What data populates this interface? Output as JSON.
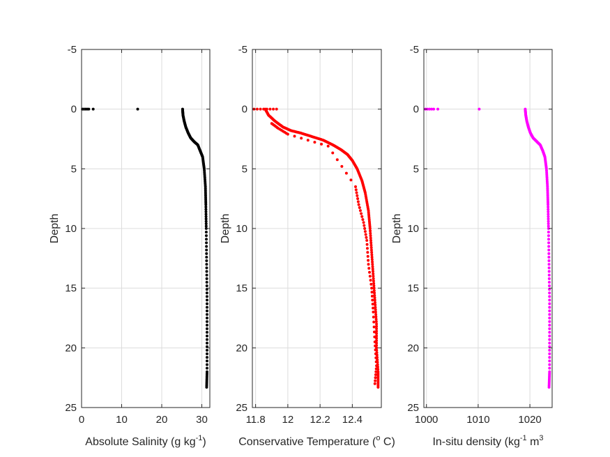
{
  "chart_data": [
    {
      "type": "scatter",
      "xlabel": "Absolute Salinity (g kg",
      "xlabel_sup": "-1",
      "xlabel_tail": ")",
      "ylabel": "Depth",
      "xlim": [
        0,
        32
      ],
      "ylim": [
        -5,
        25
      ],
      "y_reversed": true,
      "grid": true,
      "xticks": [
        0,
        10,
        20,
        30
      ],
      "xticklabels": [
        "0",
        "10",
        "20",
        "30"
      ],
      "yticks": [
        -5,
        0,
        5,
        10,
        15,
        20,
        25
      ],
      "yticklabels": [
        "-5",
        "0",
        "5",
        "10",
        "15",
        "20",
        "25"
      ],
      "color": "#000000",
      "surface_points": [
        [
          0.2,
          0
        ],
        [
          0.6,
          0
        ],
        [
          1.0,
          0
        ],
        [
          1.4,
          0
        ],
        [
          1.8,
          0
        ],
        [
          2.9,
          0
        ],
        [
          14.0,
          0
        ]
      ],
      "profile": [
        [
          25.2,
          0
        ],
        [
          25.3,
          0.5
        ],
        [
          25.6,
          1.0
        ],
        [
          26.0,
          1.5
        ],
        [
          26.6,
          2.0
        ],
        [
          27.2,
          2.4
        ],
        [
          28.0,
          2.7
        ],
        [
          29.0,
          3.0
        ],
        [
          29.6,
          3.5
        ],
        [
          30.2,
          4.0
        ],
        [
          30.6,
          5.0
        ],
        [
          30.9,
          6.5
        ],
        [
          31.0,
          8.0
        ],
        [
          31.1,
          10.0
        ],
        [
          31.2,
          13.0
        ],
        [
          31.3,
          16.0
        ],
        [
          31.3,
          19.0
        ],
        [
          31.3,
          22.0
        ],
        [
          31.2,
          23.3
        ]
      ]
    },
    {
      "type": "scatter",
      "xlabel": "Conservative Temperature (",
      "xlabel_sup": "o",
      "xlabel_tail": " C)",
      "ylabel": "Depth",
      "xlim": [
        11.78,
        12.58
      ],
      "ylim": [
        -5,
        25
      ],
      "y_reversed": true,
      "grid": true,
      "xticks": [
        11.8,
        12.0,
        12.2,
        12.4
      ],
      "xticklabels": [
        "11.8",
        "12",
        "12.2",
        "12.4"
      ],
      "yticks": [
        -5,
        0,
        5,
        10,
        15,
        20,
        25
      ],
      "yticklabels": [
        "-5",
        "0",
        "5",
        "10",
        "15",
        "20",
        "25"
      ],
      "color": "#ff0000",
      "surface_points": [
        [
          11.79,
          0
        ],
        [
          11.81,
          0
        ],
        [
          11.83,
          0
        ],
        [
          11.85,
          0
        ],
        [
          11.87,
          0
        ],
        [
          11.89,
          0
        ],
        [
          11.91,
          0
        ],
        [
          11.93,
          0
        ]
      ],
      "profile": [
        [
          11.86,
          0
        ],
        [
          11.88,
          0.5
        ],
        [
          11.92,
          1.0
        ],
        [
          11.97,
          1.5
        ],
        [
          12.02,
          1.8
        ],
        [
          12.08,
          2.0
        ],
        [
          12.15,
          2.3
        ],
        [
          12.22,
          2.6
        ],
        [
          12.28,
          3.0
        ],
        [
          12.33,
          3.4
        ],
        [
          12.37,
          3.8
        ],
        [
          12.4,
          4.3
        ],
        [
          12.43,
          5.0
        ],
        [
          12.46,
          6.0
        ],
        [
          12.48,
          7.0
        ],
        [
          12.5,
          8.5
        ],
        [
          12.51,
          10.0
        ],
        [
          12.52,
          12.0
        ],
        [
          12.53,
          14.0
        ],
        [
          12.54,
          16.0
        ],
        [
          12.55,
          18.0
        ],
        [
          12.55,
          20.0
        ],
        [
          12.56,
          22.0
        ],
        [
          12.56,
          23.3
        ]
      ],
      "scatter_offset": [
        [
          11.9,
          1.2
        ],
        [
          11.94,
          1.6
        ],
        [
          12.0,
          2.1
        ],
        [
          12.25,
          3.1
        ],
        [
          12.42,
          6.5
        ],
        [
          12.44,
          8.0
        ],
        [
          12.47,
          9.5
        ],
        [
          12.49,
          11.0
        ],
        [
          12.5,
          13.0
        ],
        [
          12.52,
          15.0
        ],
        [
          12.53,
          17.0
        ],
        [
          12.54,
          19.5
        ],
        [
          12.55,
          21.5
        ],
        [
          12.54,
          23.0
        ]
      ]
    },
    {
      "type": "scatter",
      "xlabel": "In-situ density (kg",
      "xlabel_sup": "-1",
      "xlabel_tail": " m",
      "xlabel_tail_sup": "3",
      "ylabel": "Depth",
      "xlim": [
        999.5,
        1024.3
      ],
      "ylim": [
        -5,
        25
      ],
      "y_reversed": true,
      "grid": true,
      "xticks": [
        1000,
        1010,
        1020
      ],
      "xticklabels": [
        "1000",
        "1010",
        "1020"
      ],
      "yticks": [
        -5,
        0,
        5,
        10,
        15,
        20,
        25
      ],
      "yticklabels": [
        "-5",
        "0",
        "5",
        "10",
        "15",
        "20",
        "25"
      ],
      "color": "#ff00ff",
      "surface_points": [
        [
          999.8,
          0
        ],
        [
          1000.2,
          0
        ],
        [
          1000.6,
          0
        ],
        [
          1001.0,
          0
        ],
        [
          1001.4,
          0
        ],
        [
          1002.2,
          0
        ],
        [
          1010.2,
          0
        ]
      ],
      "profile": [
        [
          1019.1,
          0
        ],
        [
          1019.2,
          0.5
        ],
        [
          1019.4,
          1.0
        ],
        [
          1019.7,
          1.5
        ],
        [
          1020.1,
          2.0
        ],
        [
          1020.6,
          2.4
        ],
        [
          1021.3,
          2.7
        ],
        [
          1022.0,
          3.0
        ],
        [
          1022.5,
          3.5
        ],
        [
          1022.9,
          4.0
        ],
        [
          1023.2,
          5.0
        ],
        [
          1023.4,
          6.5
        ],
        [
          1023.5,
          8.0
        ],
        [
          1023.6,
          10.0
        ],
        [
          1023.7,
          13.0
        ],
        [
          1023.8,
          16.0
        ],
        [
          1023.8,
          19.0
        ],
        [
          1023.8,
          22.0
        ],
        [
          1023.7,
          23.3
        ]
      ]
    }
  ]
}
